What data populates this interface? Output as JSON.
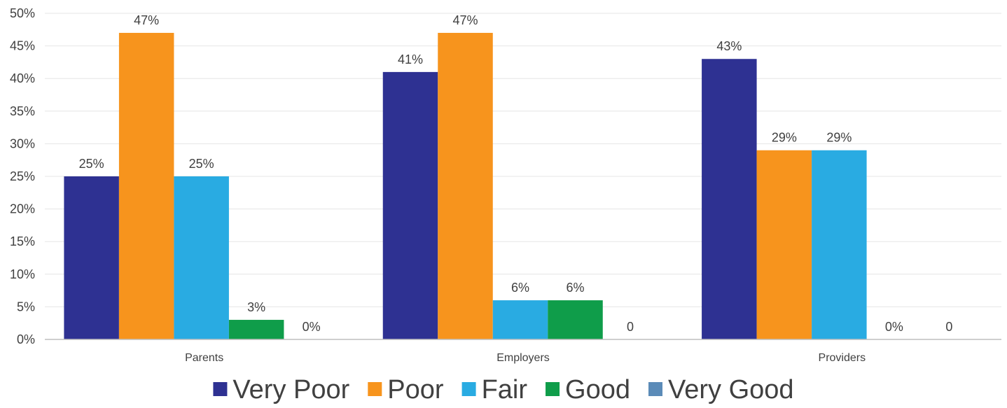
{
  "chart_data": {
    "type": "bar",
    "title": "",
    "xlabel": "",
    "ylabel": "",
    "categories": [
      "Parents",
      "Employers",
      "Providers"
    ],
    "ylim": [
      0,
      50
    ],
    "yticks": [
      "0%",
      "5%",
      "10%",
      "15%",
      "20%",
      "25%",
      "30%",
      "35%",
      "40%",
      "45%",
      "50%"
    ],
    "grid": true,
    "legend_position": "bottom",
    "series": [
      {
        "name": "Very Poor",
        "color": "#2e3192",
        "values": [
          25,
          41,
          43
        ],
        "labels": [
          "25%",
          "41%",
          "43%"
        ]
      },
      {
        "name": "Poor",
        "color": "#f7941d",
        "values": [
          47,
          47,
          29
        ],
        "labels": [
          "47%",
          "47%",
          "29%"
        ]
      },
      {
        "name": "Fair",
        "color": "#29abe2",
        "values": [
          25,
          6,
          29
        ],
        "labels": [
          "25%",
          "6%",
          "29%"
        ]
      },
      {
        "name": "Good",
        "color": "#0f9d4a",
        "values": [
          3,
          6,
          0
        ],
        "labels": [
          "3%",
          "6%",
          "0%"
        ]
      },
      {
        "name": "Very Good",
        "color": "#5b8bb8",
        "values": [
          0,
          0,
          0
        ],
        "labels": [
          "0%",
          "0",
          "0"
        ]
      }
    ]
  }
}
